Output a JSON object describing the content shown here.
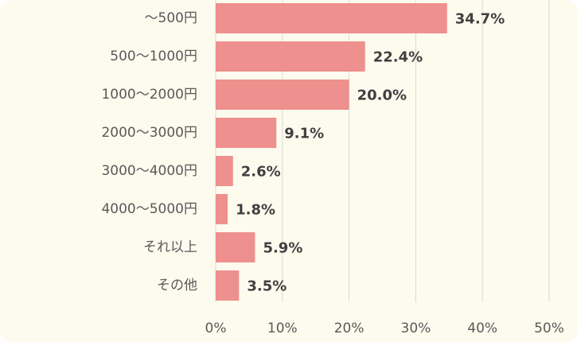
{
  "colors": {
    "background": "#fdfbee",
    "bar": "#ee908d",
    "grid": "#d9d9d9",
    "label_text": "#595959",
    "value_text": "#404040"
  },
  "chart_data": {
    "type": "bar",
    "orientation": "horizontal",
    "title": "",
    "xlabel": "",
    "ylabel": "",
    "categories": [
      "～500円",
      "500～1000円",
      "1000～2000円",
      "2000～3000円",
      "3000～4000円",
      "4000～5000円",
      "それ以上",
      "その他"
    ],
    "values": [
      34.7,
      22.4,
      20.0,
      9.1,
      2.6,
      1.8,
      5.9,
      3.5
    ],
    "value_labels": [
      "34.7%",
      "22.4%",
      "20.0%",
      "9.1%",
      "2.6%",
      "1.8%",
      "5.9%",
      "3.5%"
    ],
    "xlim": [
      0,
      50
    ],
    "x_ticks": [
      0,
      10,
      20,
      30,
      40,
      50
    ],
    "x_tick_labels": [
      "0%",
      "10%",
      "20%",
      "30%",
      "40%",
      "50%"
    ],
    "grid": true,
    "legend": false
  }
}
